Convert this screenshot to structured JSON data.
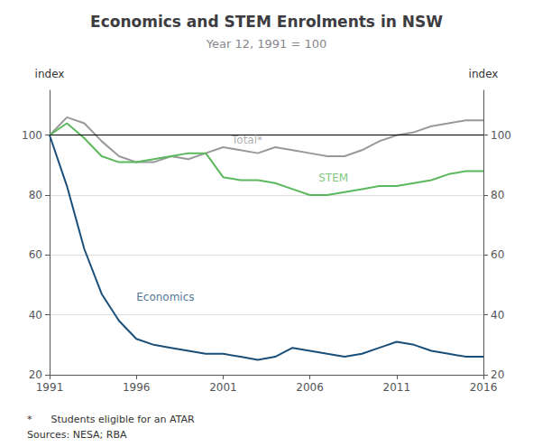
{
  "chart_data": {
    "type": "line",
    "title": "Economics and STEM Enrolments in NSW",
    "subtitle": "Year 12, 1991 = 100",
    "ylabel": "index",
    "y2label": "index",
    "footnotes": [
      "*      Students eligible for an ATAR",
      "Sources: NESA; RBA"
    ],
    "x": [
      1991,
      1992,
      1993,
      1994,
      1995,
      1996,
      1997,
      1998,
      1999,
      2000,
      2001,
      2002,
      2003,
      2004,
      2005,
      2006,
      2007,
      2008,
      2009,
      2010,
      2011,
      2012,
      2013,
      2014,
      2015,
      2016
    ],
    "xlim": [
      1991,
      2016
    ],
    "xticks": [
      1991,
      1996,
      2001,
      2006,
      2011,
      2016
    ],
    "ylim": [
      20,
      115
    ],
    "yticks": [
      20,
      40,
      60,
      80,
      100
    ],
    "y2lim": [
      20,
      115
    ],
    "y2ticks": [
      20,
      40,
      60,
      80,
      100
    ],
    "grid": true,
    "hline": 100,
    "series": [
      {
        "name": "Total*",
        "color": "#999999",
        "values": [
          100,
          106,
          104,
          98,
          93,
          91,
          91,
          93,
          92,
          94,
          96,
          95,
          94,
          96,
          95,
          94,
          93,
          93,
          95,
          98,
          100,
          101,
          103,
          104,
          105,
          105
        ]
      },
      {
        "name": "STEM",
        "color": "#5cb85c",
        "values": [
          100,
          104,
          99,
          93,
          91,
          91,
          92,
          93,
          94,
          94,
          86,
          85,
          85,
          84,
          82,
          80,
          80,
          81,
          82,
          83,
          83,
          84,
          85,
          87,
          88,
          88
        ]
      },
      {
        "name": "Economics",
        "color": "#1a4f7a",
        "values": [
          100,
          83,
          62,
          47,
          38,
          32,
          30,
          29,
          28,
          27,
          27,
          26,
          25,
          26,
          29,
          28,
          27,
          26,
          27,
          29,
          31,
          30,
          28,
          27,
          26,
          26
        ]
      }
    ],
    "annotations": [
      {
        "text": "Total*",
        "x": 2001.5,
        "y": 96.5,
        "color": "#999999"
      },
      {
        "text": "STEM",
        "x": 2006.5,
        "y": 84.0,
        "color": "#5cb85c"
      },
      {
        "text": "Economics",
        "x": 1996.0,
        "y": 44.0,
        "color": "#1a4f7a"
      }
    ]
  }
}
